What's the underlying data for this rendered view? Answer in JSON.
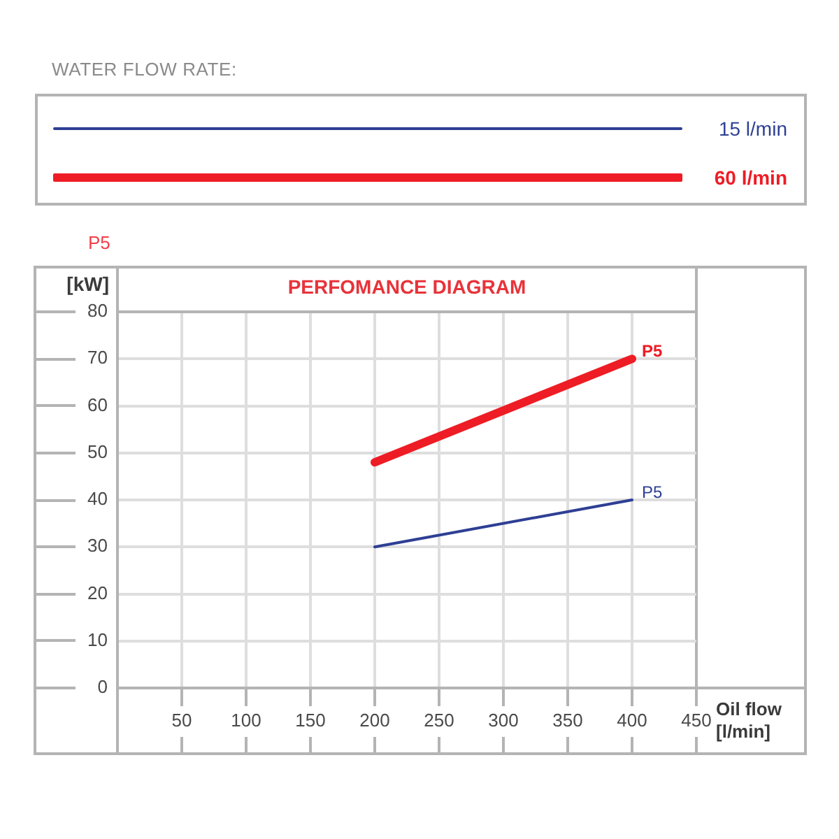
{
  "chart_data": {
    "type": "line",
    "title": "PERFOMANCE DIAGRAM",
    "subtitle": "P5",
    "xlabel": "Oil flow [l/min]",
    "ylabel": "[kW]",
    "legend_title": "WATER FLOW RATE:",
    "x": [
      200,
      400
    ],
    "series": [
      {
        "name": "15 l/min",
        "color": "#2e3f94",
        "values": [
          30,
          40
        ]
      },
      {
        "name": "60 l/min",
        "color": "#ee1c25",
        "values": [
          48,
          70
        ]
      }
    ],
    "xlim": [
      0,
      450
    ],
    "xticks": [
      50,
      100,
      150,
      200,
      250,
      300,
      350,
      400,
      450
    ],
    "ylim": [
      0,
      80
    ],
    "yticks": [
      0,
      10,
      20,
      30,
      40,
      50,
      60,
      70,
      80
    ],
    "grid": true,
    "legend": "top",
    "marker": "none",
    "annotations": [
      {
        "text": "P5",
        "x": 400,
        "y": 70
      },
      {
        "text": "P5",
        "x": 400,
        "y": 40
      }
    ]
  }
}
